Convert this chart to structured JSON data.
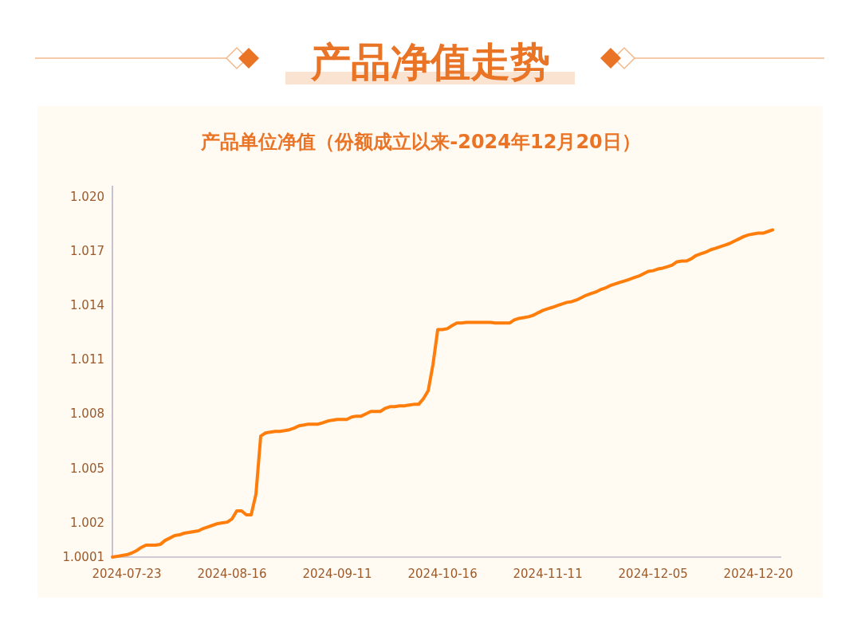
{
  "chart_data": {
    "type": "line",
    "title": "产品净值走势",
    "subtitle": "产品单位净值（份额成立以来-2024年12月20日）",
    "categories": [
      null,
      null,
      null,
      "2024-07-23",
      null,
      null,
      null,
      null,
      null,
      null,
      null,
      null,
      null,
      null,
      null,
      null,
      null,
      null,
      null,
      null,
      null,
      null,
      null,
      null,
      null,
      "2024-08-16",
      null,
      null,
      null,
      null,
      null,
      null,
      null,
      null,
      null,
      null,
      null,
      null,
      null,
      null,
      null,
      null,
      null,
      null,
      null,
      null,
      null,
      "2024-09-11",
      null,
      null,
      null,
      null,
      null,
      null,
      null,
      null,
      null,
      null,
      null,
      null,
      null,
      null,
      null,
      null,
      null,
      null,
      null,
      null,
      null,
      "2024-10-16",
      null,
      null,
      null,
      null,
      null,
      null,
      null,
      null,
      null,
      null,
      null,
      null,
      null,
      null,
      null,
      null,
      null,
      null,
      null,
      null,
      null,
      "2024-11-11",
      null,
      null,
      null,
      null,
      null,
      null,
      null,
      null,
      null,
      null,
      null,
      null,
      null,
      null,
      null,
      null,
      null,
      null,
      null,
      null,
      null,
      "2024-12-05",
      null,
      null,
      null,
      null,
      null,
      null,
      null,
      null,
      null,
      null,
      null,
      null,
      null,
      null,
      null,
      null,
      null,
      null,
      null,
      null,
      null,
      "2024-12-20",
      null,
      null,
      null
    ],
    "series": [
      {
        "color": "#ff7d0a",
        "values": [
          1.0001,
          1.00014,
          1.00019,
          1.00023,
          1.00032,
          1.00045,
          1.00063,
          1.00076,
          1.00076,
          1.00076,
          1.0008,
          1.00102,
          1.00115,
          1.00129,
          1.00133,
          1.00142,
          1.00146,
          1.00151,
          1.00155,
          1.00168,
          1.00177,
          1.00186,
          1.00195,
          1.00199,
          1.00203,
          1.00221,
          1.00265,
          1.00265,
          1.00243,
          1.00243,
          1.00357,
          1.00678,
          1.00695,
          1.007,
          1.00704,
          1.00704,
          1.00708,
          1.00713,
          1.00722,
          1.00735,
          1.00739,
          1.00744,
          1.00744,
          1.00744,
          1.00752,
          1.00761,
          1.00766,
          1.0077,
          1.0077,
          1.0077,
          1.00783,
          1.00788,
          1.00788,
          1.00801,
          1.00814,
          1.00814,
          1.00814,
          1.00831,
          1.0084,
          1.0084,
          1.00845,
          1.00845,
          1.00849,
          1.00853,
          1.00853,
          1.00884,
          1.00928,
          1.01073,
          1.01266,
          1.01266,
          1.01271,
          1.01288,
          1.01302,
          1.01302,
          1.01306,
          1.01306,
          1.01306,
          1.01306,
          1.01306,
          1.01306,
          1.01302,
          1.01302,
          1.01302,
          1.01302,
          1.01319,
          1.01328,
          1.01332,
          1.01337,
          1.01345,
          1.01359,
          1.01372,
          1.01381,
          1.01389,
          1.01398,
          1.01407,
          1.01416,
          1.0142,
          1.01429,
          1.01442,
          1.01455,
          1.01464,
          1.01473,
          1.01486,
          1.01495,
          1.01508,
          1.01517,
          1.01526,
          1.01534,
          1.01543,
          1.01552,
          1.01561,
          1.01574,
          1.01587,
          1.01591,
          1.016,
          1.01605,
          1.01613,
          1.01622,
          1.0164,
          1.01644,
          1.01644,
          1.01657,
          1.01675,
          1.01684,
          1.01693,
          1.01706,
          1.01714,
          1.01723,
          1.01732,
          1.01741,
          1.01754,
          1.01767,
          1.0178,
          1.01789,
          1.01794,
          1.01798,
          1.01798,
          1.01807,
          1.01816
        ]
      }
    ],
    "ylim": [
      1.0001,
      1.0206
    ],
    "yticks": [
      1.0001,
      1.002,
      1.005,
      1.008,
      1.011,
      1.014,
      1.017,
      {
        "value": 1.02,
        "label": "1.020"
      }
    ],
    "line_style": "solid"
  }
}
